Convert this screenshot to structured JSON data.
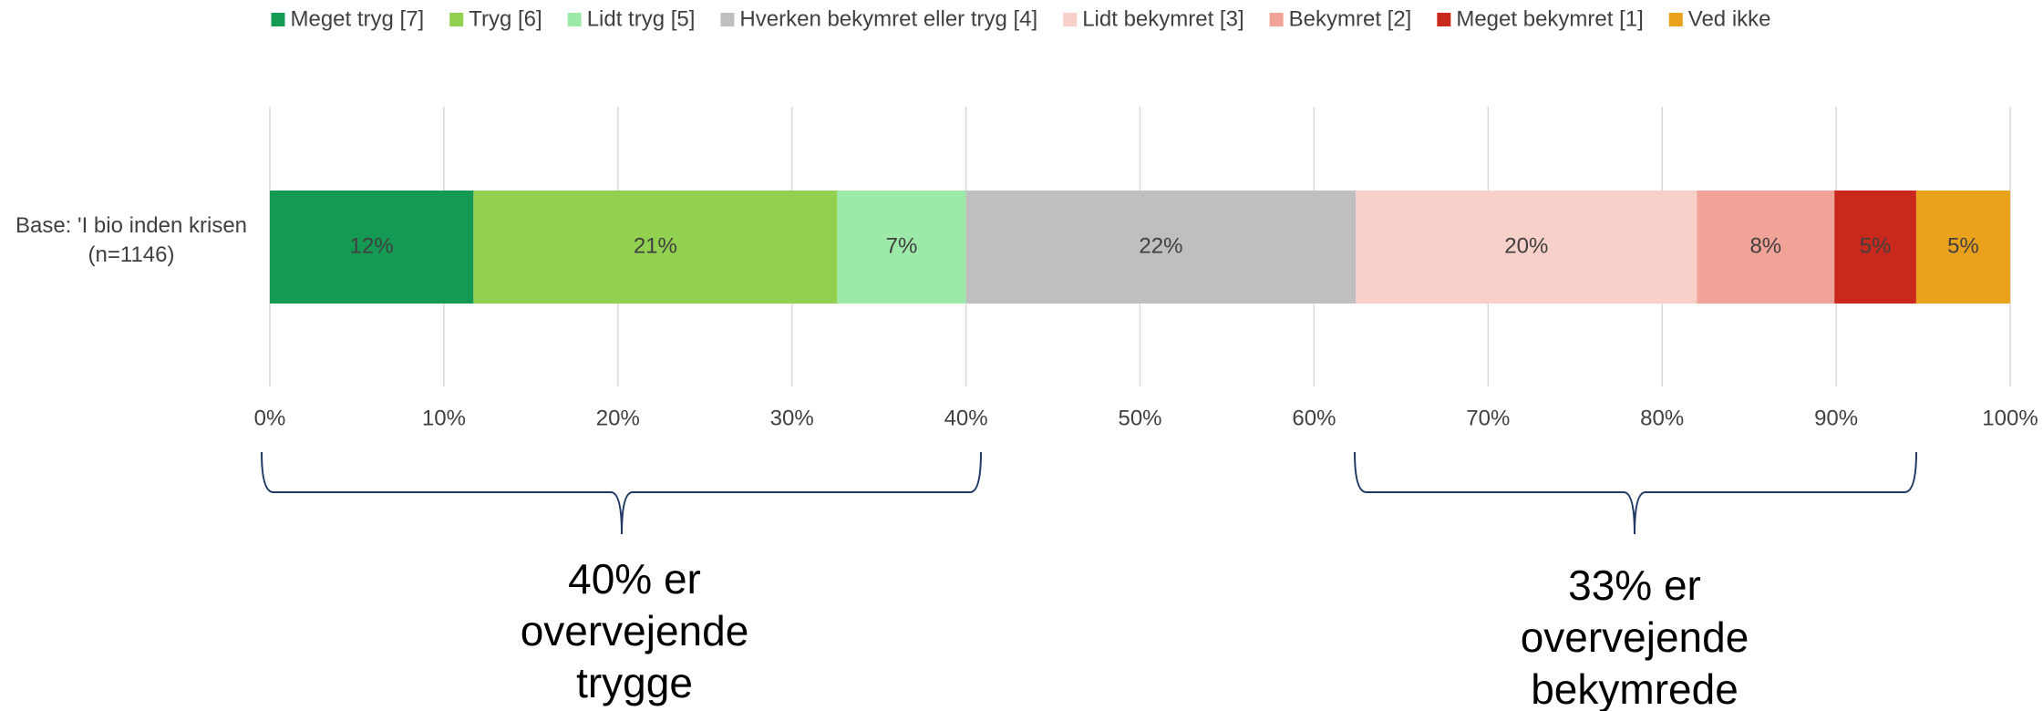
{
  "chart_data": {
    "type": "stacked_barh",
    "categories": [
      "Base: 'I bio inden krisen (n=1146)"
    ],
    "series": [
      {
        "name": "Meget tryg [7]",
        "color": "#149a53",
        "values": [
          11.7
        ],
        "value_labels": [
          "12%"
        ]
      },
      {
        "name": "Tryg [6]",
        "color": "#92d050",
        "values": [
          20.9
        ],
        "value_labels": [
          "21%"
        ]
      },
      {
        "name": "Lidt tryg [5]",
        "color": "#9de9a8",
        "values": [
          7.4
        ],
        "value_labels": [
          "7%"
        ]
      },
      {
        "name": "Hverken bekymret eller tryg [4]",
        "color": "#bfbfbf",
        "values": [
          22.4
        ],
        "value_labels": [
          "22%"
        ]
      },
      {
        "name": "Lidt bekymret [3]",
        "color": "#f8d0ca",
        "values": [
          19.6
        ],
        "value_labels": [
          "20%"
        ]
      },
      {
        "name": "Bekymret [2]",
        "color": "#f2a397",
        "values": [
          7.9
        ],
        "value_labels": [
          "8%"
        ]
      },
      {
        "name": "Meget bekymret [1]",
        "color": "#c9281c",
        "values": [
          4.7
        ],
        "value_labels": [
          "5%"
        ]
      },
      {
        "name": "Ved ikke",
        "color": "#eaa11c",
        "values": [
          5.4
        ],
        "value_labels": [
          "5%"
        ]
      }
    ],
    "xlim": [
      0,
      100
    ],
    "xticks": [
      {
        "value": 0,
        "label": "0%"
      },
      {
        "value": 10,
        "label": "10%"
      },
      {
        "value": 20,
        "label": "20%"
      },
      {
        "value": 30,
        "label": "30%"
      },
      {
        "value": 40,
        "label": "40%"
      },
      {
        "value": 50,
        "label": "50%"
      },
      {
        "value": 60,
        "label": "60%"
      },
      {
        "value": 70,
        "label": "70%"
      },
      {
        "value": 80,
        "label": "80%"
      },
      {
        "value": 90,
        "label": "90%"
      },
      {
        "value": 100,
        "label": "100%"
      }
    ],
    "grid": true,
    "legend": "top",
    "annotations": [
      {
        "lines": [
          "40% er",
          "overvejende",
          "trygge"
        ]
      },
      {
        "lines": [
          "33% er",
          "overvejende",
          "bekymrede"
        ]
      }
    ]
  }
}
